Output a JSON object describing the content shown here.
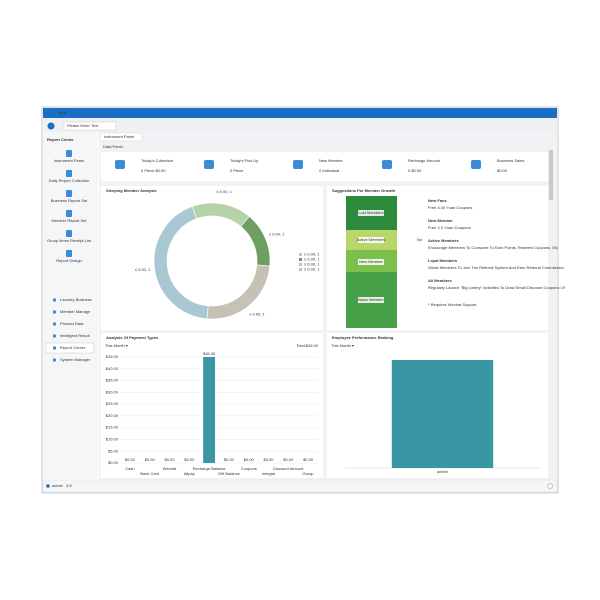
{
  "window": {
    "title": "DUB",
    "search_placeholder": "Please Enter Text"
  },
  "sidebar": {
    "header": "Report Center",
    "reports": [
      "Instrument Panel",
      "Daily Report Collection",
      "Business Report Set",
      "Member Report Set",
      "Group Items Receipt List",
      "Report Design"
    ],
    "menu": [
      "Laundry Business",
      "Member Manage",
      "Product Data",
      "Intelligent Result",
      "Report Center",
      "System Manager"
    ]
  },
  "tab": "Instrument Panel",
  "panel_title": "Data Panel",
  "stats": [
    {
      "label": "Today's Collection",
      "value": "0 Piece    $0.00"
    },
    {
      "label": "Today's Pick Up",
      "value": "0 Piece"
    },
    {
      "label": "New Member",
      "value": "0 Individual"
    },
    {
      "label": "Recharge Amount",
      "value": "0    $0.00"
    },
    {
      "label": "Business Sales",
      "value": "$0.00"
    }
  ],
  "suggestions": {
    "title": "Suggestions For Member Growth",
    "stages": [
      "Lost Members",
      "Active Members",
      "New Member",
      "Basic Member"
    ],
    "arrow": "No",
    "tips": [
      {
        "head": "New Fans",
        "text": "Free 3.30 Yuan Coupons"
      },
      {
        "head": "New Member",
        "text": "Free 3 X Yuan Coupons"
      },
      {
        "head": "Active Members",
        "text": "Encourage Members To Consume To Earn Points, Redeem Coupons, Etc"
      },
      {
        "head": "Loyal Members",
        "text": "Guide Members To Join The Referral System And Earn Referral Commission"
      },
      {
        "head": "All Members",
        "text": "Regularly Launch \"Big Lottery\" Activities To Draw Small Discount Coupons Of"
      }
    ],
    "note": "* Requires Wechat Support"
  },
  "chart_data": [
    {
      "type": "pie",
      "title": "Sleeping Member Analysis",
      "categories": [
        "≤ 0.00, 1",
        "≤ 0.00, 1",
        "≤ 0.00, 1",
        "≤ 0.00, 1"
      ],
      "values": [
        60,
        55,
        90,
        155
      ],
      "colors": [
        "#b5d3a6",
        "#6e9e62",
        "#c3c2b4",
        "#a9c8d4"
      ]
    },
    {
      "type": "bar",
      "title": "Analysis Of Payment Types",
      "filter": "This Month ▾",
      "total": "Total:$45.00",
      "categories": [
        "Cash",
        "Bank Card",
        "Wechat",
        "Alipay",
        "Recharge Balance",
        "Gift Balance",
        "Coupons",
        "Integral",
        "Discount Amount",
        "Group"
      ],
      "values": [
        0,
        0,
        0,
        0,
        45,
        0,
        0,
        0,
        0,
        0
      ],
      "value_labels": [
        "$0.00",
        "$0.00",
        "$0.00",
        "$0.00",
        "$45.00",
        "$0.00",
        "$0.00",
        "$0.00",
        "$0.00",
        "$0.00"
      ],
      "color": "#3a96a3",
      "ylim": [
        0,
        45
      ],
      "yticks": [
        {
          "value": 0,
          "label": "$0.00"
        },
        {
          "value": 5,
          "label": "$5.00"
        },
        {
          "value": 10,
          "label": "$10.00"
        },
        {
          "value": 15,
          "label": "$15.00"
        },
        {
          "value": 20,
          "label": "$20.00"
        },
        {
          "value": 25,
          "label": "$25.00"
        },
        {
          "value": 30,
          "label": "$30.00"
        },
        {
          "value": 35,
          "label": "$35.00"
        },
        {
          "value": 40,
          "label": "$40.00"
        },
        {
          "value": 45,
          "label": "$45.00"
        }
      ],
      "grid": true
    },
    {
      "type": "bar",
      "title": "Employee Performance Ranking",
      "filter": "This Month ▾",
      "categories": [
        "admin"
      ],
      "values": [
        1
      ],
      "color": "#3a96a3",
      "ylim": [
        0,
        1
      ]
    }
  ],
  "status": {
    "user": "admin",
    "version": "3.8"
  }
}
